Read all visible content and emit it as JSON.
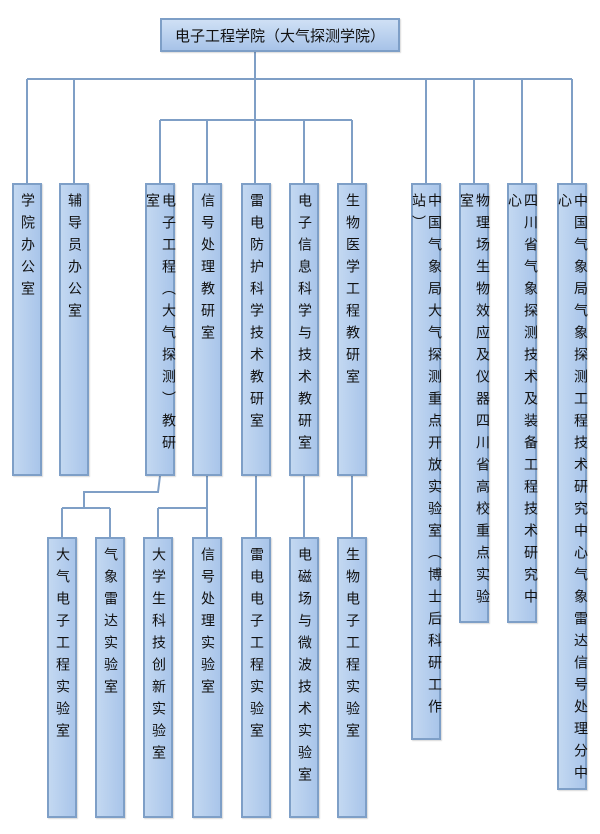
{
  "root": "电子工程学院（大气探测学院）",
  "level1": [
    "学院办公室",
    "辅导员办公室",
    "电子工程（大气探测）教研室",
    "信号处理教研室",
    "雷电防护科学技术教研室",
    "电子信息科学与技术教研室",
    "生物医学工程教研室",
    "中国气象局大气探测重点开放实验室（博士后科研工作站）",
    "物理场生物效应及仪器四川省高校重点实验室",
    "四川省气象探测技术及装备工程技术研究中心",
    "中国气象局气象探测工程技术研究中心气象雷达信号处理分中心"
  ],
  "level2": [
    "大气电子工程实验室",
    "气象雷达实验室",
    "大学生科技创新实验室",
    "信号处理实验室",
    "雷电电子工程实验室",
    "电磁场与微波技术实验室",
    "生物电子工程实验室"
  ],
  "colors": {
    "box_fill": "#b6cfee",
    "box_border": "#7e9fc7",
    "connector": "#7f9fc6"
  }
}
